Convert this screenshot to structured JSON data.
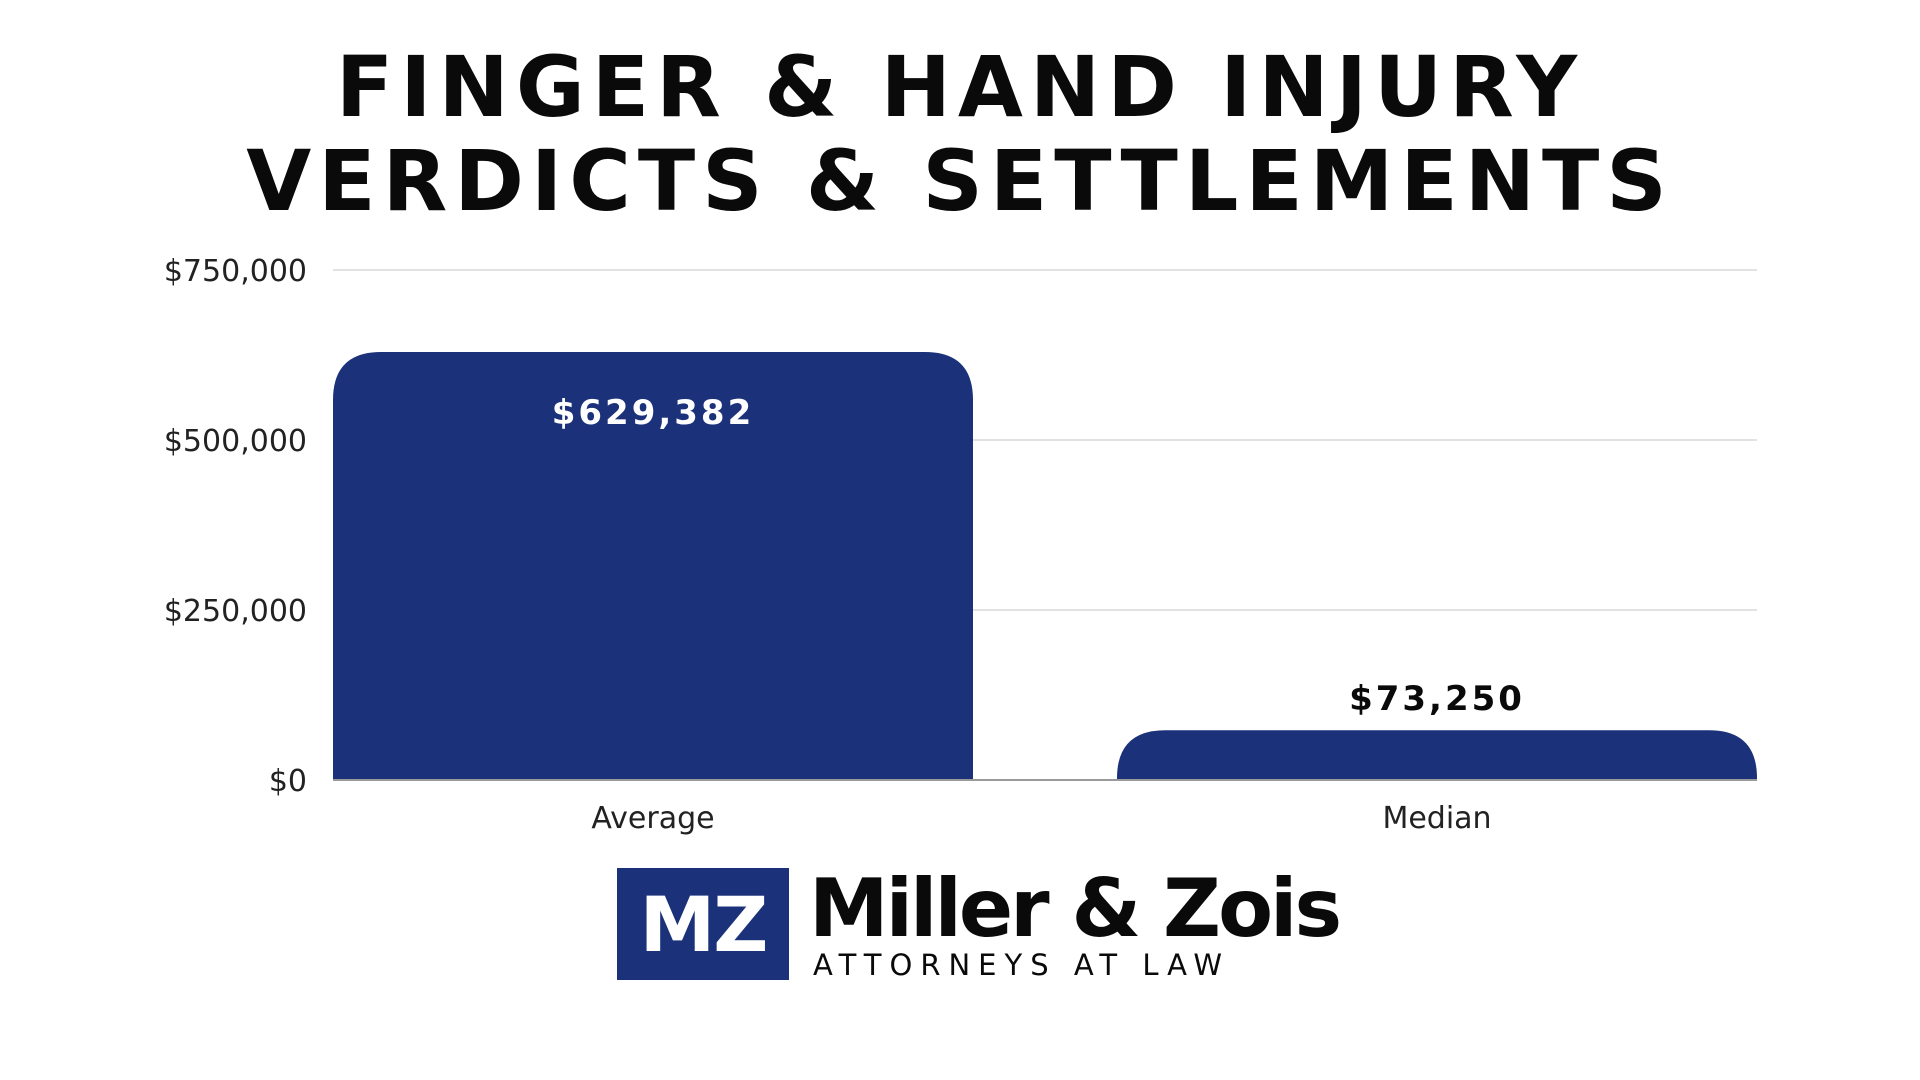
{
  "colors": {
    "bar": "#1b3179",
    "grid": "#d9d9d9",
    "axis": "#9a9a9a",
    "text": "#0a0a0a",
    "label_inside": "#ffffff",
    "label_outside": "#0a0a0a"
  },
  "chart_data": {
    "type": "bar",
    "title_lines": [
      "FINGER & HAND INJURY",
      "VERDICTS & SETTLEMENTS"
    ],
    "categories": [
      "Average",
      "Median"
    ],
    "values": [
      629382,
      73250
    ],
    "value_labels": [
      "$629,382",
      "$73,250"
    ],
    "ylim": [
      0,
      750000
    ],
    "y_ticks": [
      0,
      250000,
      500000,
      750000
    ],
    "y_tick_labels": [
      "$0",
      "$250,000",
      "$500,000",
      "$750,000"
    ],
    "xlabel": "",
    "ylabel": "",
    "grid": true,
    "legend": "none"
  },
  "logo": {
    "mark": "MZ",
    "name": "Miller & Zois",
    "tagline": "ATTORNEYS AT LAW"
  }
}
